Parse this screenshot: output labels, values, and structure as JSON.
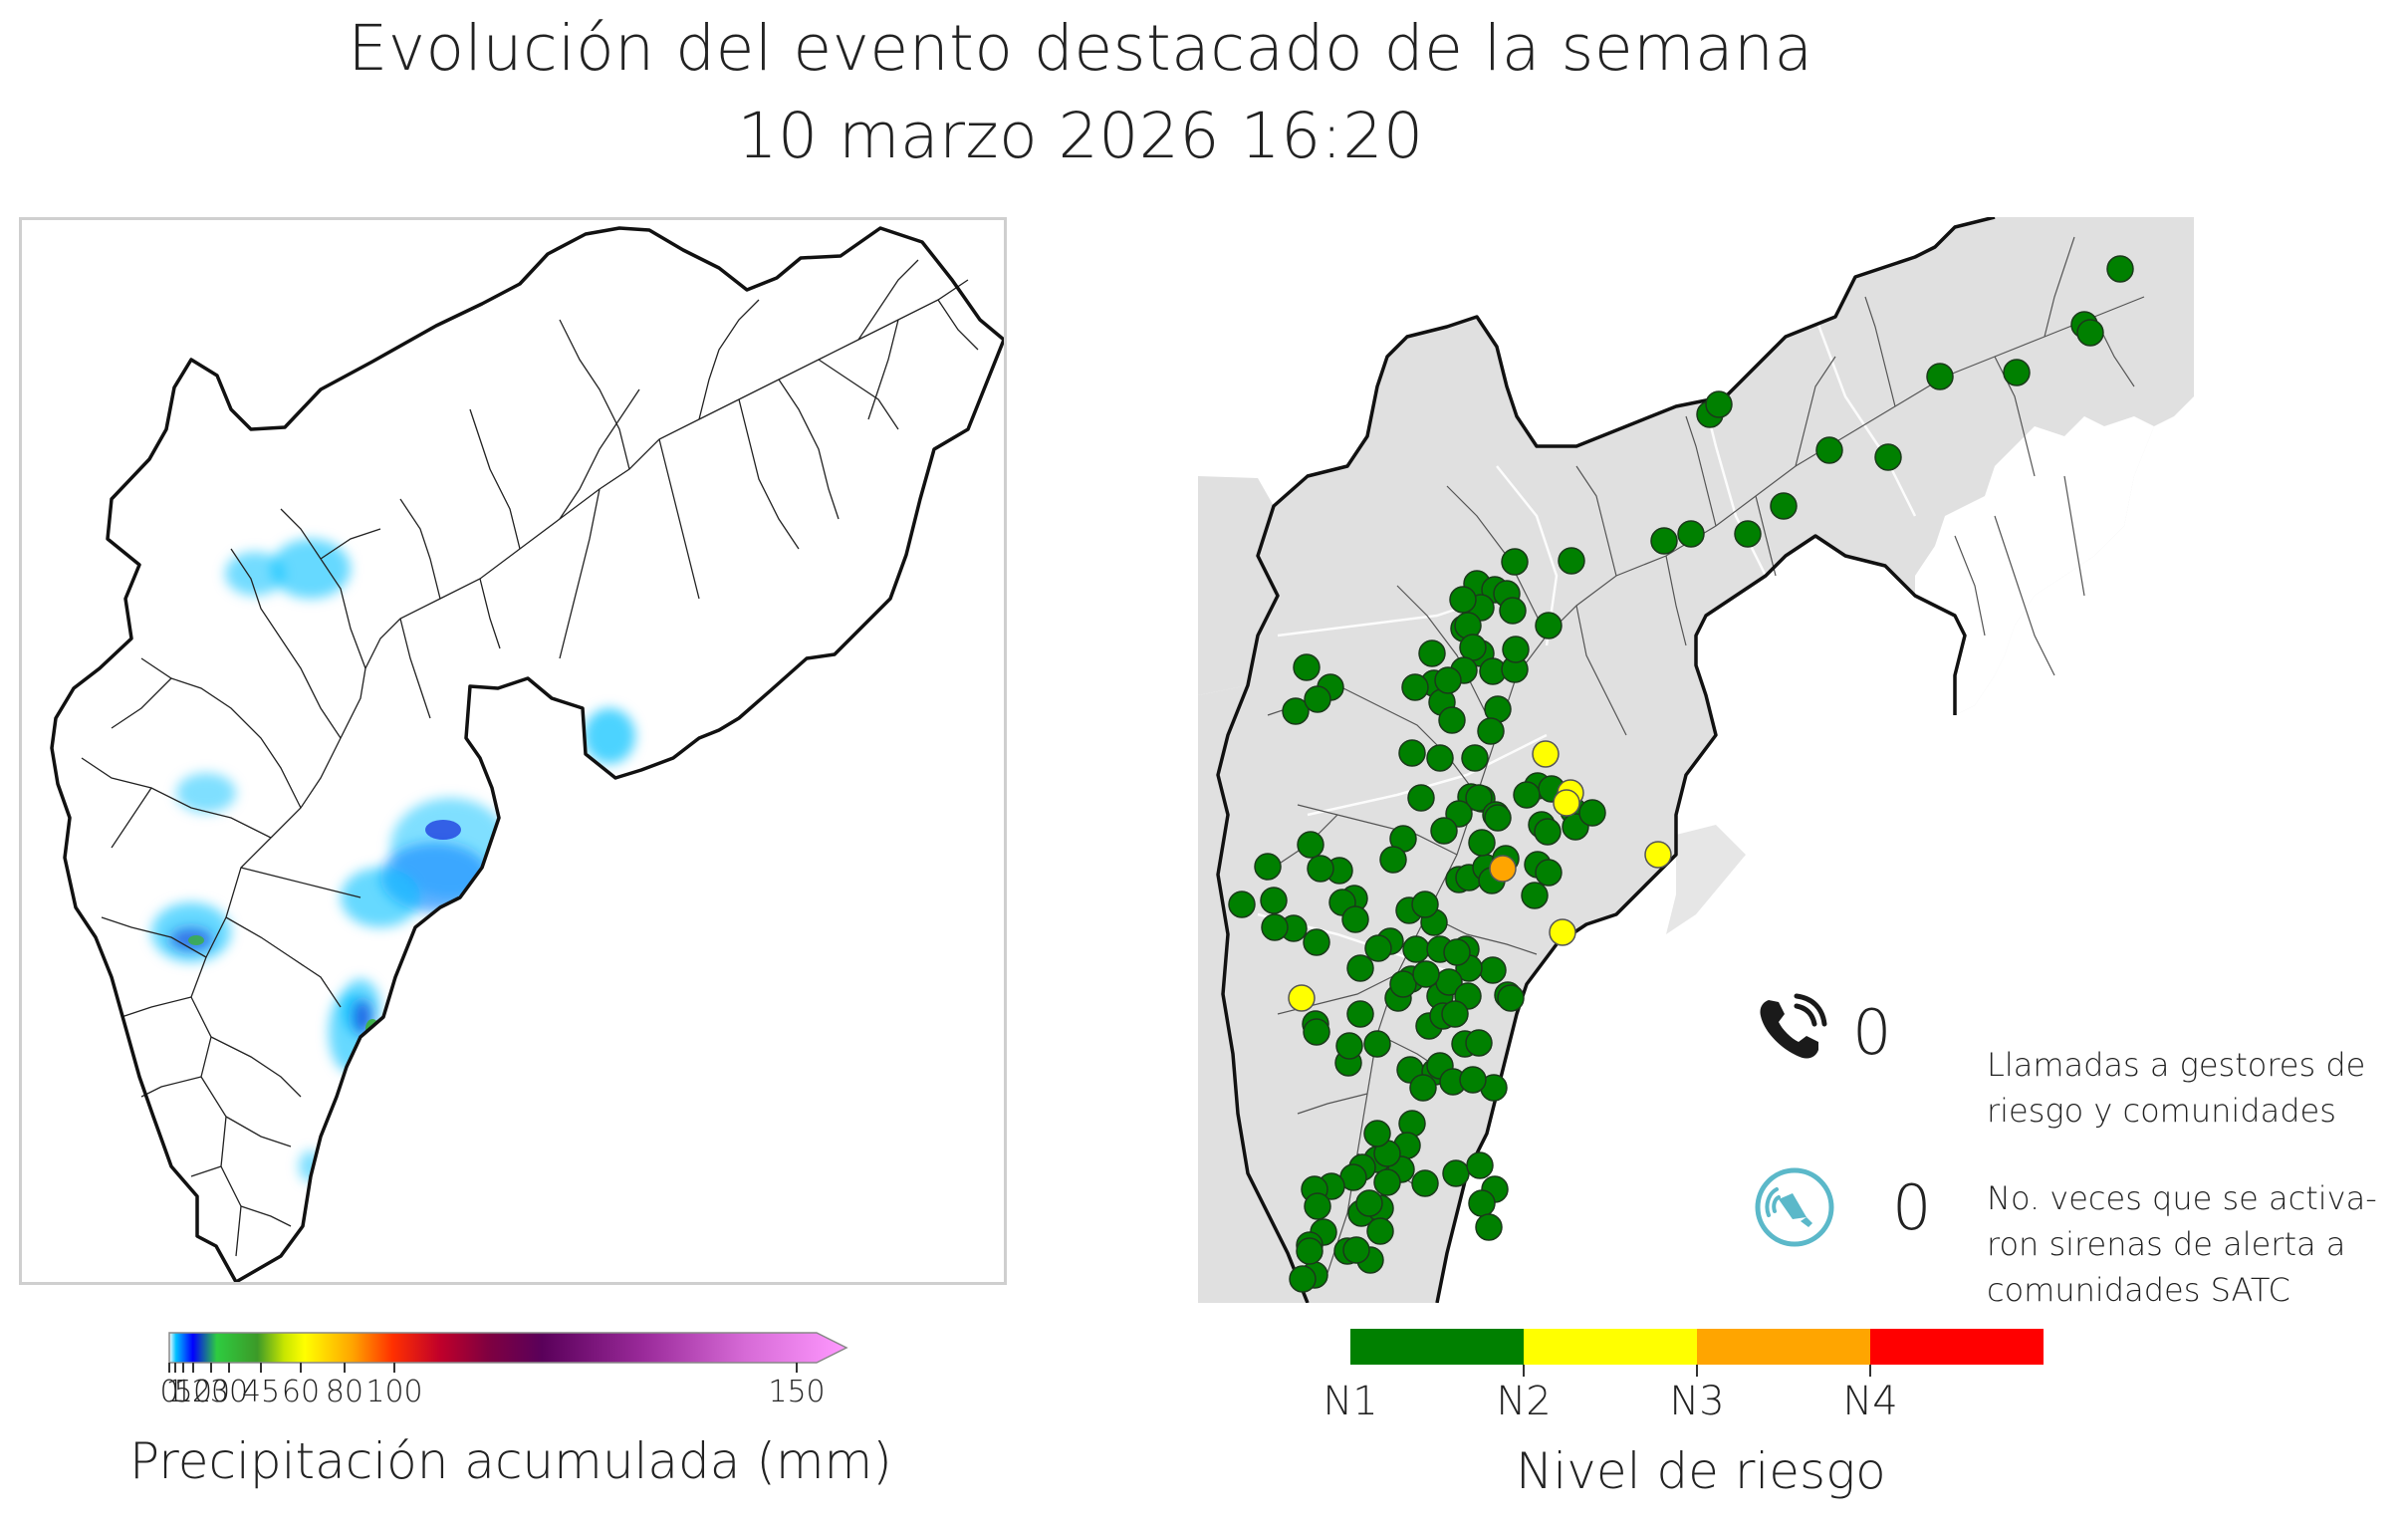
{
  "header": {
    "title": "Evolución del evento destacado de la semana",
    "datetime": "10 marzo 2026 16:20"
  },
  "precip_legend": {
    "title": "Precipitación acumulada (mm)",
    "ticks": [
      "0",
      "1",
      "5",
      "10",
      "20",
      "30",
      "45",
      "60",
      "80",
      "100",
      "150"
    ],
    "tick_values": [
      0,
      1,
      5,
      10,
      20,
      30,
      45,
      60,
      80,
      100,
      150
    ],
    "colors": [
      "#ffffff",
      "#00c0ff",
      "#0000ff",
      "#2ecc40",
      "#3cb33c",
      "#c8e600",
      "#ffff00",
      "#ffa500",
      "#ff0000",
      "#800040",
      "#6a006a",
      "#ff99ff"
    ]
  },
  "risk_legend": {
    "title": "Nivel de riesgo",
    "levels": [
      {
        "label": "N1",
        "color": "#008000"
      },
      {
        "label": "N2",
        "color": "#ffff00"
      },
      {
        "label": "N3",
        "color": "#ffa500"
      },
      {
        "label": "N4",
        "color": "#ff0000"
      }
    ]
  },
  "stats": {
    "calls": {
      "icon": "phone-icon",
      "count": "0",
      "description": "Llamadas a gestores de riesgo y comunidades"
    },
    "sirens": {
      "icon": "siren-speaker-icon",
      "count": "0",
      "description_lines": [
        "No. veces que se activa-",
        "ron sirenas de alerta a",
        "comunidades SATC"
      ]
    }
  },
  "stations": {
    "N1": 150,
    "N2": 7,
    "N3": 1,
    "N4": 0
  }
}
